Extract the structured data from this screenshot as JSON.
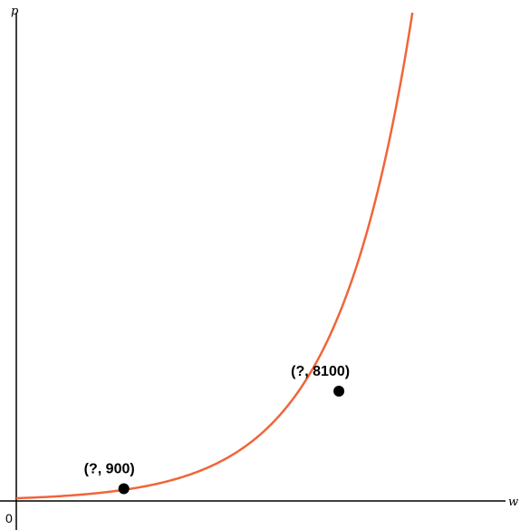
{
  "chart_data": {
    "type": "line",
    "title": "",
    "xlabel": "w",
    "ylabel": "p",
    "origin_label": "0",
    "curve_color": "#f0653a",
    "point_color": "#000000",
    "curve": {
      "form": "exponential",
      "start_y": 200,
      "growth_per_unit_w": 2.1
    },
    "xlim": [
      0,
      8.9
    ],
    "ylim": [
      0,
      36000
    ],
    "grid": false,
    "legend": "none",
    "points": [
      {
        "x": 1.9,
        "y": 900,
        "label": "(?, 900)"
      },
      {
        "x": 5.7,
        "y": 8100,
        "label": "(?, 8100)"
      }
    ]
  }
}
